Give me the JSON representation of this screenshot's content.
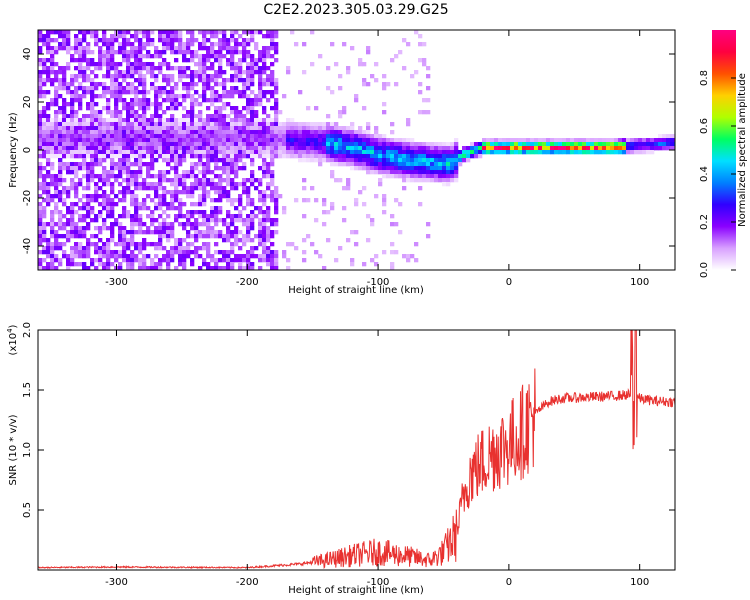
{
  "figure": {
    "title": "C2E2.2023.305.03.29.G25"
  },
  "chart_data": [
    {
      "type": "heatmap",
      "title": "C2E2.2023.305.03.29.G25",
      "xlabel": "Height of straight line (km)",
      "ylabel": "Frequency (Hz)",
      "xlim": [
        -360,
        127
      ],
      "ylim": [
        -50,
        50
      ],
      "xticks": [
        -300,
        -200,
        -100,
        0,
        100
      ],
      "yticks": [
        -40,
        -20,
        0,
        20,
        40
      ],
      "colorbar": {
        "label": "Normalized spectral amplitude",
        "range": [
          0,
          1
        ],
        "ticks": [
          0.0,
          0.2,
          0.4,
          0.6,
          0.8
        ],
        "colors": [
          "#ffffff",
          "#d8a0ff",
          "#8a00ff",
          "#3000ff",
          "#0080ff",
          "#00e0ff",
          "#00ff60",
          "#b0ff00",
          "#ffd000",
          "#ff5000",
          "#ff0040",
          "#ff0080"
        ]
      },
      "ridge": {
        "x": [
          -180,
          -160,
          -140,
          -120,
          -100,
          -80,
          -60,
          -45,
          -35,
          -20,
          0,
          40,
          80,
          100,
          127
        ],
        "y": [
          5,
          4,
          3,
          1,
          -2,
          -4,
          -5,
          -6,
          -2,
          1,
          1,
          1,
          1,
          2,
          3
        ]
      },
      "noise_region": {
        "x": [
          -360,
          -175
        ],
        "y": [
          -50,
          50
        ]
      }
    },
    {
      "type": "line",
      "xlabel": "Height of straight line (km)",
      "ylabel": "SNR (10 * v/v)",
      "yscale_label": "(x10",
      "yscale_exp": "4",
      "yscale_close": ")",
      "xlim": [
        -360,
        127
      ],
      "ylim": [
        0,
        20000
      ],
      "xticks": [
        -300,
        -200,
        -100,
        0,
        100
      ],
      "ytick_labels": [
        "0.5",
        "1.0",
        "1.5",
        "2.0"
      ],
      "yticks": [
        5000,
        10000,
        15000,
        20000
      ],
      "series": [
        {
          "color": "#e8312f",
          "x": [
            -360,
            -300,
            -200,
            -160,
            -140,
            -120,
            -100,
            -80,
            -60,
            -50,
            -40,
            -35,
            -30,
            -25,
            -20,
            -10,
            0,
            10,
            20,
            30,
            40,
            60,
            80,
            90,
            95,
            100,
            110,
            127
          ],
          "y": [
            200,
            250,
            200,
            500,
            800,
            1200,
            1500,
            1200,
            800,
            1500,
            3000,
            6000,
            8000,
            8500,
            9000,
            10000,
            10500,
            11500,
            13000,
            14000,
            14300,
            14400,
            14500,
            14600,
            14600,
            14300,
            14100,
            14000
          ]
        }
      ]
    }
  ]
}
